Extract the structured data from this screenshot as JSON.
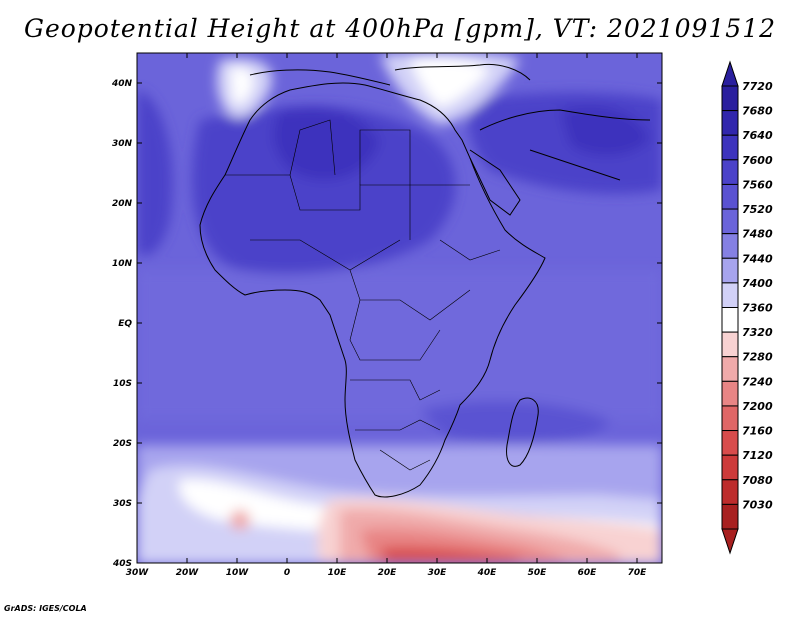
{
  "title": "Geopotential Height at 400hPa [gpm], VT: 2021091512",
  "footer": "GrADS: IGES/COLA",
  "map": {
    "domain": {
      "lon": [
        -30,
        75
      ],
      "lat": [
        -40,
        45
      ]
    },
    "lon_ticks": [
      {
        "value": -30,
        "label": "30W"
      },
      {
        "value": -20,
        "label": "20W"
      },
      {
        "value": -10,
        "label": "10W"
      },
      {
        "value": 0,
        "label": "0"
      },
      {
        "value": 10,
        "label": "10E"
      },
      {
        "value": 20,
        "label": "20E"
      },
      {
        "value": 30,
        "label": "30E"
      },
      {
        "value": 40,
        "label": "40E"
      },
      {
        "value": 50,
        "label": "50E"
      },
      {
        "value": 60,
        "label": "60E"
      },
      {
        "value": 70,
        "label": "70E"
      }
    ],
    "lat_ticks": [
      {
        "value": 40,
        "label": "40N"
      },
      {
        "value": 30,
        "label": "30N"
      },
      {
        "value": 20,
        "label": "20N"
      },
      {
        "value": 10,
        "label": "10N"
      },
      {
        "value": 0,
        "label": "EQ"
      },
      {
        "value": -10,
        "label": "10S"
      },
      {
        "value": -20,
        "label": "20S"
      },
      {
        "value": -30,
        "label": "30S"
      },
      {
        "value": -40,
        "label": "40S"
      }
    ]
  },
  "colorbar": {
    "levels": [
      {
        "value": "7720",
        "color": "#2a1f9e"
      },
      {
        "value": "7680",
        "color": "#3126ad"
      },
      {
        "value": "7640",
        "color": "#3d33bd"
      },
      {
        "value": "7600",
        "color": "#4b42c9"
      },
      {
        "value": "7560",
        "color": "#5a52d2"
      },
      {
        "value": "7520",
        "color": "#6b64da"
      },
      {
        "value": "7480",
        "color": "#8580e3"
      },
      {
        "value": "7440",
        "color": "#a7a4ee"
      },
      {
        "value": "7400",
        "color": "#d2d1f7"
      },
      {
        "value": "7360",
        "color": "#ffffff"
      },
      {
        "value": "7320",
        "color": "#f8d2d2"
      },
      {
        "value": "7280",
        "color": "#f0aaaa"
      },
      {
        "value": "7240",
        "color": "#e88585"
      },
      {
        "value": "7200",
        "color": "#e06666"
      },
      {
        "value": "7160",
        "color": "#d84c4c"
      },
      {
        "value": "7120",
        "color": "#cd3a3a"
      },
      {
        "value": "7080",
        "color": "#bd2c2c"
      },
      {
        "value": "7030",
        "color": "#a82020"
      }
    ]
  }
}
